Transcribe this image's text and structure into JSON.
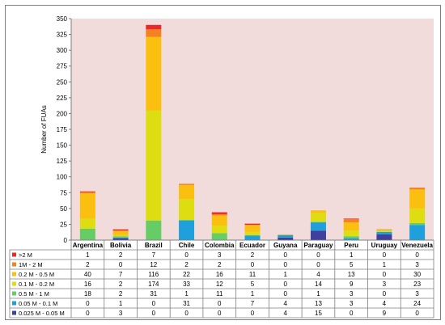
{
  "chart_data": {
    "type": "bar",
    "stacked": true,
    "ylabel": "Number of FUAs",
    "ylim": [
      0,
      350
    ],
    "yticks": [
      0,
      25,
      50,
      75,
      100,
      125,
      150,
      175,
      200,
      225,
      250,
      275,
      300,
      325,
      350
    ],
    "grid": false,
    "plot_background": "#f2dcdb",
    "categories": [
      "Argentina",
      "Bolivia",
      "Brazil",
      "Chile",
      "Colombia",
      "Ecuador",
      "Guyana",
      "Paraguay",
      "Peru",
      "Uruguay",
      "Venezuela"
    ],
    "series": [
      {
        "name": "0.025 M - 0.05 M",
        "color": "#3f3f9f",
        "values": [
          0,
          3,
          0,
          0,
          0,
          0,
          4,
          15,
          0,
          9,
          0
        ]
      },
      {
        "name": "0.05 M - 0.1 M",
        "color": "#1f9fdc",
        "values": [
          0,
          1,
          0,
          31,
          0,
          7,
          4,
          13,
          3,
          4,
          24
        ]
      },
      {
        "name": "0.5 M - 1 M",
        "color": "#66cc66",
        "values": [
          18,
          2,
          31,
          1,
          11,
          1,
          0,
          1,
          3,
          0,
          3
        ]
      },
      {
        "name": "0.1 M - 0.2 M",
        "color": "#dddd11",
        "values": [
          16,
          2,
          174,
          33,
          12,
          5,
          0,
          14,
          9,
          3,
          23
        ]
      },
      {
        "name": "0.2 M - 0.5 M",
        "color": "#fbbf0f",
        "values": [
          40,
          7,
          116,
          22,
          16,
          11,
          1,
          4,
          13,
          0,
          30
        ]
      },
      {
        "name": "1M - 2 M",
        "color": "#f58220",
        "values": [
          2,
          0,
          12,
          2,
          2,
          0,
          0,
          0,
          5,
          1,
          3
        ]
      },
      {
        "name": ">2 M",
        "color": "#e8282b",
        "values": [
          1,
          2,
          7,
          0,
          3,
          2,
          0,
          0,
          1,
          0,
          0
        ]
      }
    ],
    "table_rows": [
      ">2 M",
      "1M - 2 M",
      "0.2 M - 0.5 M",
      "0.1 M - 0.2 M",
      "0.5 M - 1 M",
      "0.05 M - 0.1 M",
      "0.025 M - 0.05 M"
    ]
  }
}
